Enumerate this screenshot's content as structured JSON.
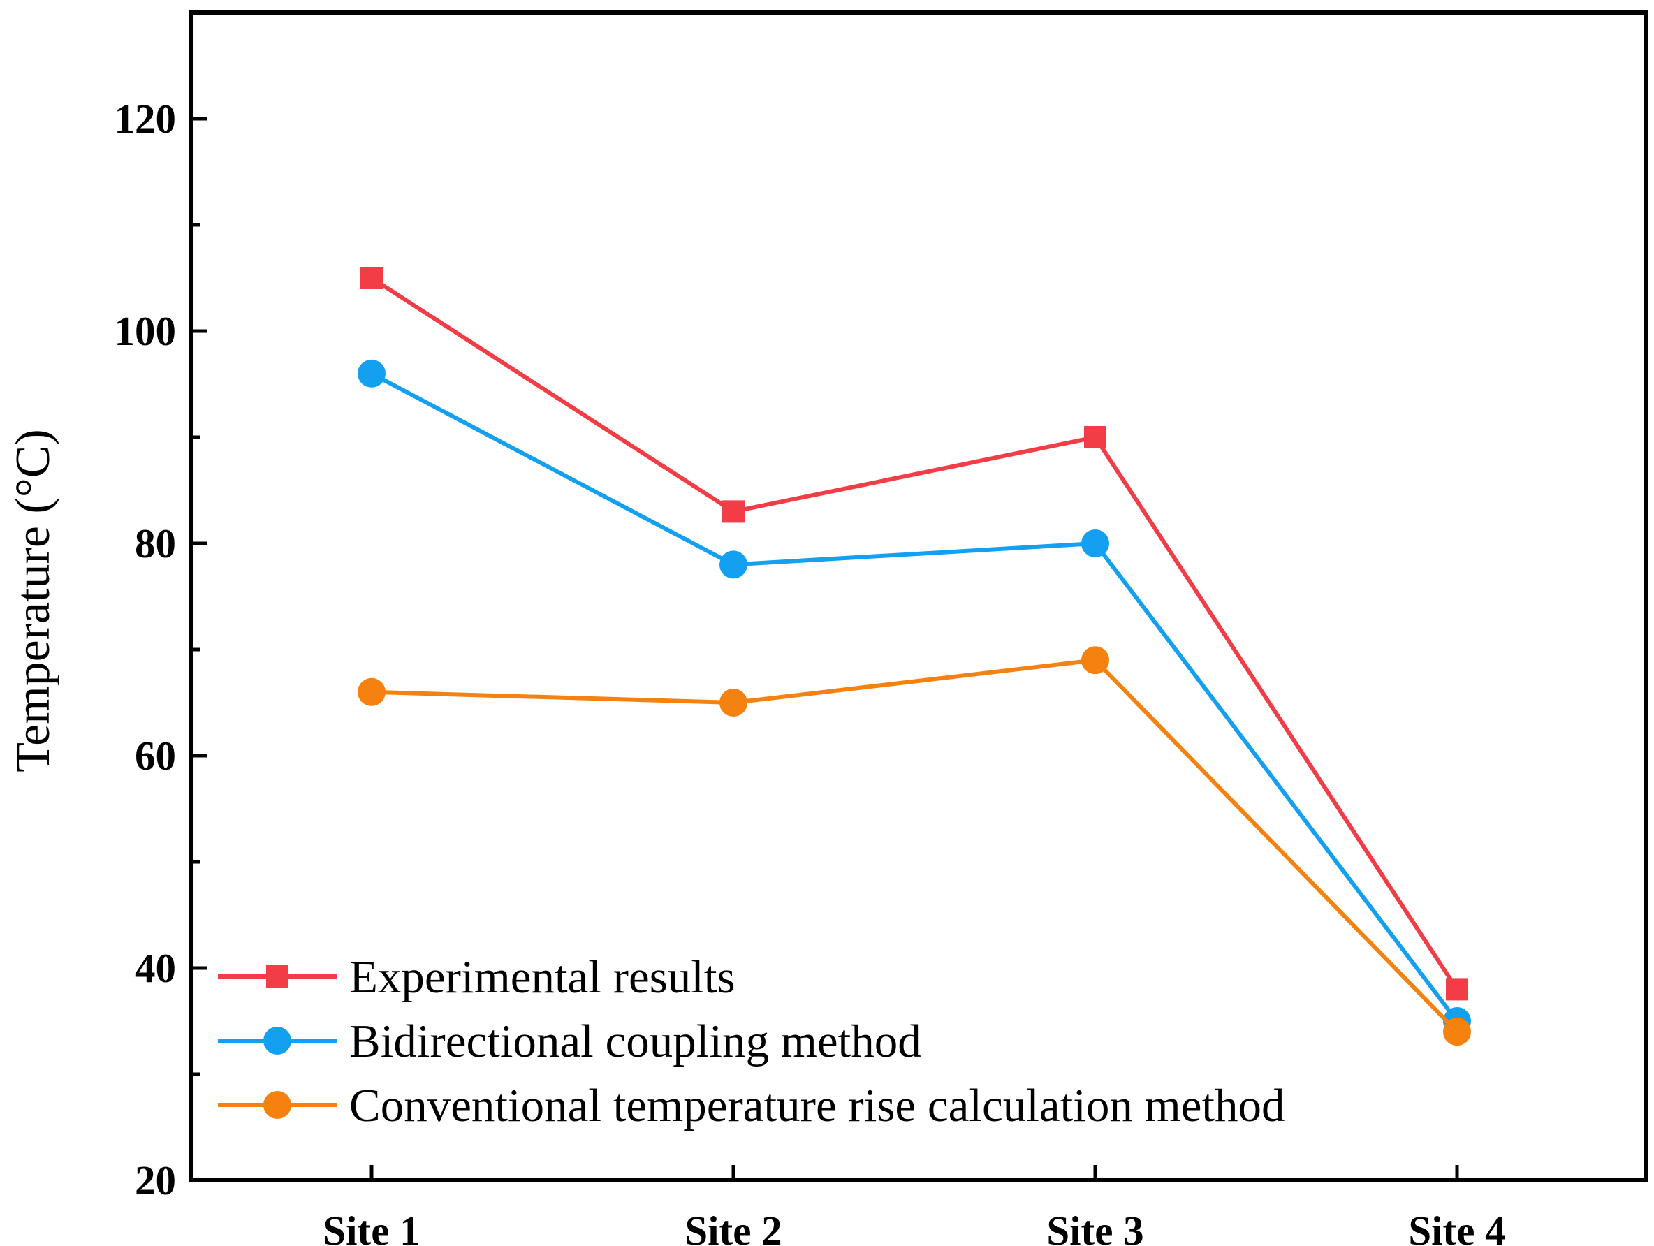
{
  "chart_data": {
    "type": "line",
    "title": "",
    "xlabel": "",
    "ylabel": "Temperature (°C)",
    "categories": [
      "Site 1",
      "Site 2",
      "Site 3",
      "Site 4"
    ],
    "ylim": [
      20,
      130
    ],
    "yticks": [
      20,
      40,
      60,
      80,
      100,
      120
    ],
    "yticks_minor": [
      30,
      50,
      70,
      90,
      110
    ],
    "grid": false,
    "legend_position": "bottom-left",
    "series": [
      {
        "name": "Experimental results",
        "marker": "square",
        "color": "#f23c46",
        "values": [
          105,
          83,
          90,
          38
        ]
      },
      {
        "name": "Bidirectional coupling method",
        "marker": "circle",
        "color": "#14a0f0",
        "values": [
          96,
          78,
          80,
          35
        ]
      },
      {
        "name": "Conventional temperature rise calculation method",
        "marker": "circle",
        "color": "#f5820f",
        "values": [
          66,
          65,
          69,
          34
        ]
      }
    ]
  }
}
